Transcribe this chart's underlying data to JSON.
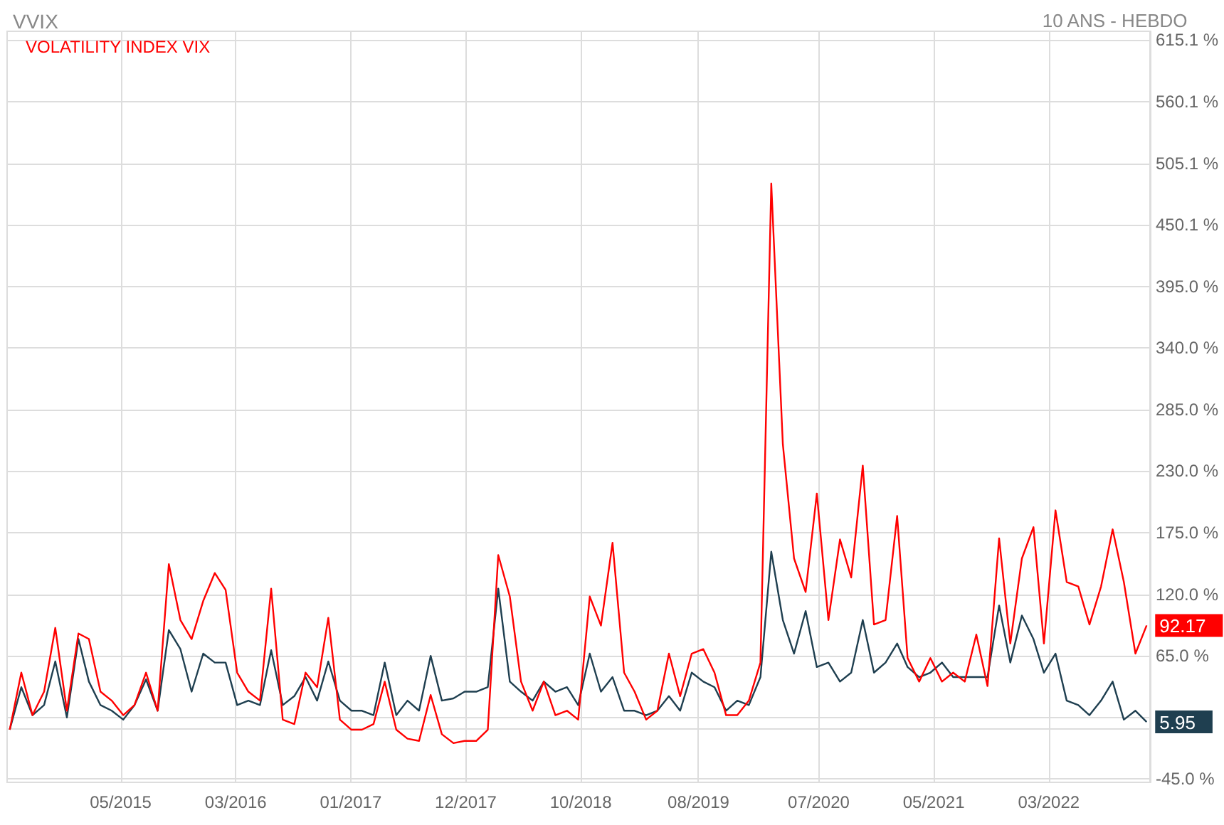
{
  "chart_data": {
    "type": "line",
    "title": "VVIX",
    "subtitle": "10 ANS - HEBDO",
    "x": [
      "2014-08",
      "2014-09",
      "2014-10",
      "2014-11",
      "2014-12",
      "2015-01",
      "2015-02",
      "2015-03",
      "2015-04",
      "2015-05",
      "2015-06",
      "2015-07",
      "2015-08",
      "2015-09",
      "2015-10",
      "2015-11",
      "2015-12",
      "2016-01",
      "2016-02",
      "2016-03",
      "2016-04",
      "2016-05",
      "2016-06",
      "2016-07",
      "2016-08",
      "2016-09",
      "2016-10",
      "2016-11",
      "2016-12",
      "2017-01",
      "2017-02",
      "2017-03",
      "2017-04",
      "2017-05",
      "2017-06",
      "2017-07",
      "2017-08",
      "2017-09",
      "2017-10",
      "2017-11",
      "2017-12",
      "2018-01",
      "2018-02",
      "2018-03",
      "2018-04",
      "2018-05",
      "2018-06",
      "2018-07",
      "2018-08",
      "2018-09",
      "2018-10",
      "2018-11",
      "2018-12",
      "2019-01",
      "2019-02",
      "2019-03",
      "2019-04",
      "2019-05",
      "2019-06",
      "2019-07",
      "2019-08",
      "2019-09",
      "2019-10",
      "2019-11",
      "2019-12",
      "2020-01",
      "2020-02",
      "2020-03",
      "2020-04",
      "2020-05",
      "2020-06",
      "2020-07",
      "2020-08",
      "2020-09",
      "2020-10",
      "2020-11",
      "2020-12",
      "2021-01",
      "2021-02",
      "2021-03",
      "2021-04",
      "2021-05",
      "2021-06",
      "2021-07",
      "2021-08",
      "2021-09",
      "2021-10",
      "2021-11",
      "2021-12",
      "2022-01",
      "2022-02",
      "2022-03",
      "2022-04",
      "2022-05",
      "2022-06",
      "2022-07",
      "2022-08",
      "2022-09",
      "2022-10",
      "2022-11",
      "2022-12"
    ],
    "series": [
      {
        "name": "VOLATILITY INDEX VIX",
        "color": "#ff0000",
        "values": [
          -1,
          50,
          12,
          33,
          90,
          16,
          85,
          80,
          33,
          25,
          12,
          21,
          50,
          16,
          147,
          97,
          80,
          114,
          139,
          124,
          50,
          33,
          25,
          125,
          8,
          4,
          50,
          37,
          99,
          8,
          -1,
          -1,
          4,
          42,
          -1,
          -9,
          -11,
          30,
          -5,
          -13,
          -11,
          -11,
          -1,
          155,
          118,
          42,
          16,
          42,
          12,
          16,
          8,
          118,
          92,
          166,
          50,
          33,
          8,
          16,
          67,
          29,
          67,
          71,
          50,
          12,
          12,
          25,
          59,
          487,
          254,
          152,
          122,
          210,
          97,
          169,
          135,
          235,
          93,
          97,
          190,
          63,
          42,
          63,
          42,
          50,
          42,
          84,
          38,
          170,
          76,
          152,
          180,
          76,
          195,
          131,
          127,
          93,
          127,
          178,
          131,
          67,
          92.17
        ]
      },
      {
        "color": "#1f3f50",
        "values": [
          -1,
          37,
          12,
          21,
          60,
          10,
          80,
          42,
          21,
          16,
          8,
          21,
          44,
          16,
          88,
          71,
          33,
          67,
          59,
          59,
          21,
          25,
          21,
          70,
          21,
          29,
          46,
          25,
          60,
          25,
          16,
          16,
          12,
          59,
          12,
          25,
          16,
          65,
          25,
          27,
          33,
          33,
          37,
          125,
          42,
          33,
          25,
          42,
          33,
          37,
          21,
          67,
          33,
          46,
          16,
          16,
          12,
          16,
          29,
          16,
          50,
          42,
          37,
          16,
          25,
          21,
          46,
          158,
          97,
          67,
          105,
          55,
          59,
          42,
          50,
          97,
          50,
          59,
          76,
          55,
          46,
          50,
          59,
          46,
          46,
          46,
          46,
          110,
          59,
          101,
          80,
          50,
          67,
          25,
          21,
          12,
          25,
          42,
          8,
          16,
          5.95
        ]
      }
    ],
    "xlim": [
      "2014-07-25",
      "2022-12-10"
    ],
    "xticks": [
      {
        "value": "2015-05-25",
        "label": "05/2015"
      },
      {
        "value": "2016-03-28",
        "label": "03/2016"
      },
      {
        "value": "2017-01-30",
        "label": "01/2017"
      },
      {
        "value": "2017-12-04",
        "label": "12/2017"
      },
      {
        "value": "2018-10-08",
        "label": "10/2018"
      },
      {
        "value": "2019-08-19",
        "label": "08/2019"
      },
      {
        "value": "2020-07-06",
        "label": "07/2020"
      },
      {
        "value": "2021-05-10",
        "label": "05/2021"
      },
      {
        "value": "2022-03-14",
        "label": "03/2022"
      }
    ],
    "ylim": [
      -48,
      623
    ],
    "yticks": [
      {
        "value": -45,
        "label": "-45.0 %"
      },
      {
        "value": 10,
        "label": null
      },
      {
        "value": 65,
        "label": "65.0 %"
      },
      {
        "value": 120,
        "label": "120.0 %"
      },
      {
        "value": 175,
        "label": "175.0 %"
      },
      {
        "value": 230,
        "label": "230.0 %"
      },
      {
        "value": 285,
        "label": "285.0 %"
      },
      {
        "value": 340,
        "label": "340.0 %"
      },
      {
        "value": 395,
        "label": "395.0 %"
      },
      {
        "value": 450.1,
        "label": "450.1 %"
      },
      {
        "value": 505.1,
        "label": "505.1 %"
      },
      {
        "value": 560.1,
        "label": "560.1 %"
      },
      {
        "value": 615.1,
        "label": "615.1 %"
      }
    ],
    "annotations": [
      {
        "text": "92.17",
        "x": "2022-12",
        "y": 92.17
      },
      {
        "text": "5.95",
        "x": "2022-12",
        "y": 5.95
      }
    ],
    "grid": true,
    "legend": "top left",
    "marker": "none",
    "line_style": "solid"
  }
}
